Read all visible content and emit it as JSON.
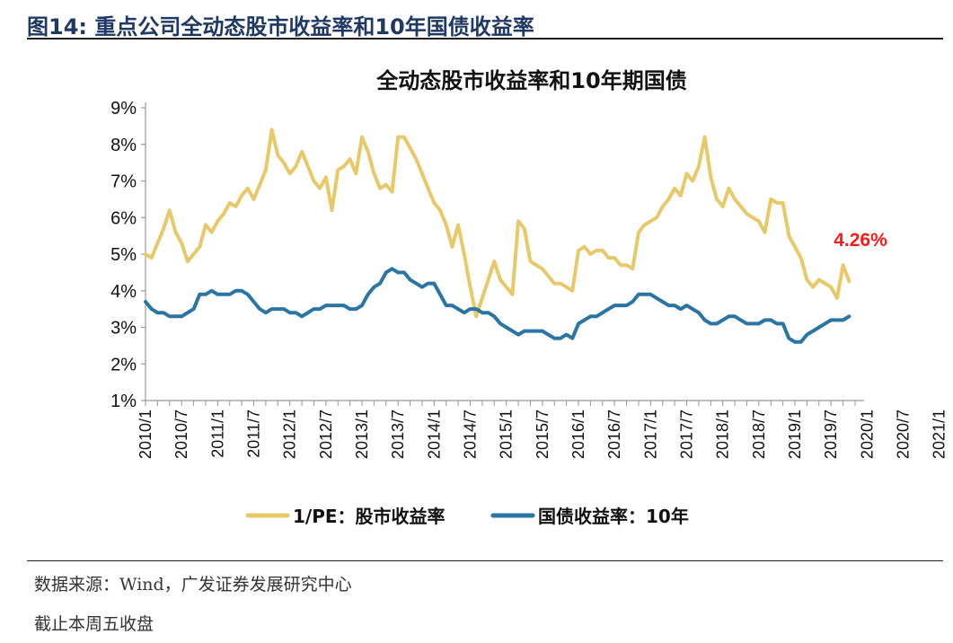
{
  "figure": {
    "label": "图14:",
    "title": "重点公司全动态股市收益率和10年国债收益率"
  },
  "source": "数据来源：Wind，广发证券发展研究中心",
  "note": "截止本周五收盘",
  "colors": {
    "pe": "#e8c96a",
    "bond": "#2b75a5",
    "annotation": "#ff1a1a",
    "title_blue": "#1f3864"
  },
  "chart_data": {
    "type": "line",
    "title": "全动态股市收益率和10年期国债",
    "xlabel": "",
    "ylabel": "",
    "ylim": [
      1,
      9
    ],
    "yticks": [
      "1%",
      "2%",
      "3%",
      "4%",
      "5%",
      "6%",
      "7%",
      "8%",
      "9%"
    ],
    "x_tick_labels": [
      "2010/1",
      "2010/7",
      "2011/1",
      "2011/7",
      "2012/1",
      "2012/7",
      "2013/1",
      "2013/7",
      "2014/1",
      "2014/7",
      "2015/1",
      "2015/7",
      "2016/1",
      "2016/7",
      "2017/1",
      "2017/7",
      "2018/1",
      "2018/7",
      "2019/1",
      "2019/7",
      "2020/1",
      "2020/7",
      "2021/1"
    ],
    "x_start": "2010/1",
    "x_end": "2021/4",
    "grid": false,
    "legend_position": "bottom",
    "annotation": {
      "text": "4.26%",
      "series": "1/PE：股市收益率",
      "value": 4.26
    },
    "series": [
      {
        "name": "1/PE：股市收益率",
        "color": "#e8c96a",
        "values": [
          5.0,
          4.9,
          5.3,
          5.7,
          6.2,
          5.6,
          5.3,
          4.8,
          5.0,
          5.2,
          5.8,
          5.6,
          5.9,
          6.1,
          6.4,
          6.3,
          6.6,
          6.8,
          6.5,
          6.9,
          7.3,
          8.4,
          7.7,
          7.5,
          7.2,
          7.4,
          7.8,
          7.4,
          7.0,
          6.8,
          7.1,
          6.2,
          7.3,
          7.4,
          7.6,
          7.2,
          8.2,
          7.8,
          7.2,
          6.8,
          6.9,
          6.7,
          8.2,
          8.2,
          7.9,
          7.6,
          7.2,
          6.8,
          6.4,
          6.2,
          5.8,
          5.2,
          5.8,
          5.0,
          4.1,
          3.3,
          3.8,
          4.3,
          4.8,
          4.3,
          4.1,
          3.9,
          5.9,
          5.7,
          4.8,
          4.7,
          4.6,
          4.4,
          4.2,
          4.2,
          4.1,
          4.0,
          5.1,
          5.2,
          5.0,
          5.1,
          5.1,
          4.9,
          4.9,
          4.7,
          4.7,
          4.6,
          5.6,
          5.8,
          5.9,
          6.0,
          6.3,
          6.5,
          6.8,
          6.6,
          7.2,
          7.0,
          7.4,
          8.2,
          7.1,
          6.5,
          6.3,
          6.8,
          6.5,
          6.3,
          6.1,
          6.0,
          5.9,
          5.6,
          6.5,
          6.4,
          6.4,
          5.5,
          5.2,
          4.9,
          4.3,
          4.1,
          4.3,
          4.2,
          4.1,
          3.8,
          4.7,
          4.26
        ]
      },
      {
        "name": "国债收益率：10年",
        "color": "#2b75a5",
        "values": [
          3.7,
          3.5,
          3.4,
          3.4,
          3.3,
          3.3,
          3.3,
          3.4,
          3.5,
          3.9,
          3.9,
          4.0,
          3.9,
          3.9,
          3.9,
          4.0,
          4.0,
          3.9,
          3.7,
          3.5,
          3.4,
          3.5,
          3.5,
          3.5,
          3.4,
          3.4,
          3.3,
          3.4,
          3.5,
          3.5,
          3.6,
          3.6,
          3.6,
          3.6,
          3.5,
          3.5,
          3.6,
          3.9,
          4.1,
          4.2,
          4.5,
          4.6,
          4.5,
          4.5,
          4.3,
          4.2,
          4.1,
          4.2,
          4.2,
          3.9,
          3.6,
          3.6,
          3.5,
          3.4,
          3.5,
          3.5,
          3.4,
          3.4,
          3.3,
          3.1,
          3.0,
          2.9,
          2.8,
          2.9,
          2.9,
          2.9,
          2.9,
          2.8,
          2.7,
          2.7,
          2.8,
          2.7,
          3.1,
          3.2,
          3.3,
          3.3,
          3.4,
          3.5,
          3.6,
          3.6,
          3.6,
          3.7,
          3.9,
          3.9,
          3.9,
          3.8,
          3.7,
          3.6,
          3.6,
          3.5,
          3.6,
          3.5,
          3.4,
          3.2,
          3.1,
          3.1,
          3.2,
          3.3,
          3.3,
          3.2,
          3.1,
          3.1,
          3.1,
          3.2,
          3.2,
          3.1,
          3.1,
          2.7,
          2.6,
          2.6,
          2.8,
          2.9,
          3.0,
          3.1,
          3.2,
          3.2,
          3.2,
          3.3
        ]
      }
    ]
  }
}
